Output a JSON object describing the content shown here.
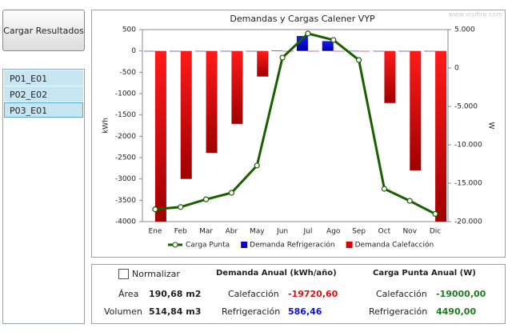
{
  "sidebar": {
    "button": "Cargar Resultados",
    "items": [
      "P01_E01",
      "P02_E02",
      "P03_E01"
    ]
  },
  "chart_data": {
    "type": "combo",
    "title": "Demandas y Cargas Calener VYP",
    "watermark": "www.visifire.com",
    "ylabel": "kWh",
    "y2label": "W",
    "categories": [
      "Ene",
      "Feb",
      "Mar",
      "Abr",
      "May",
      "Jun",
      "Jul",
      "Ago",
      "Sep",
      "Oct",
      "Nov",
      "Dic"
    ],
    "series": [
      {
        "name": "Carga Punta",
        "kind": "line",
        "axis": "y2",
        "color": "#1a5e00",
        "values": [
          -18400,
          -18100,
          -17100,
          -16250,
          -12700,
          1350,
          4490,
          3650,
          1040,
          -15730,
          -17300,
          -19000
        ]
      },
      {
        "name": "Demanda Refrigeración",
        "kind": "bar",
        "color": "#0000cc",
        "values": [
          0,
          0,
          0,
          0,
          0,
          5,
          350,
          230,
          1.46,
          0,
          0,
          0
        ]
      },
      {
        "name": "Demanda Calefacción",
        "kind": "bar",
        "color": "#e00000",
        "values": [
          -4000,
          -3000,
          -2390,
          -1710,
          -600,
          0,
          0,
          0,
          0,
          -1220,
          -2800,
          -4000
        ]
      }
    ],
    "ylim": [
      -4000,
      500
    ],
    "yticks": [
      500,
      0,
      -500,
      -1000,
      -1500,
      -2000,
      -2500,
      -3000,
      -3500,
      -4000
    ],
    "y2lim": [
      -20000,
      5000
    ],
    "y2ticks": [
      {
        "value": 5000,
        "label": "5.000"
      },
      {
        "value": 0,
        "label": "0"
      },
      {
        "value": -5000,
        "label": "-5.000"
      },
      {
        "value": -10000,
        "label": "-10.000"
      },
      {
        "value": -15000,
        "label": "-15.000"
      },
      {
        "value": -20000,
        "label": "-20.000"
      }
    ],
    "grid": false,
    "legend": "bottom"
  },
  "summary": {
    "normalize": "Normalizar",
    "area_label": "Área",
    "area": "190,68 m2",
    "volume_label": "Volumen",
    "volume": "514,84 m3",
    "demand_title": "Demanda Anual (kWh/año)",
    "demand_heat_label": "Calefacción",
    "demand_heat": "-19720,60",
    "demand_cool_label": "Refrigeración",
    "demand_cool": "586,46",
    "peak_title": "Carga Punta Anual  (W)",
    "peak_heat_label": "Calefacción",
    "peak_heat": "-19000,00",
    "peak_cool_label": "Refrigeración",
    "peak_cool": "4490,00"
  }
}
